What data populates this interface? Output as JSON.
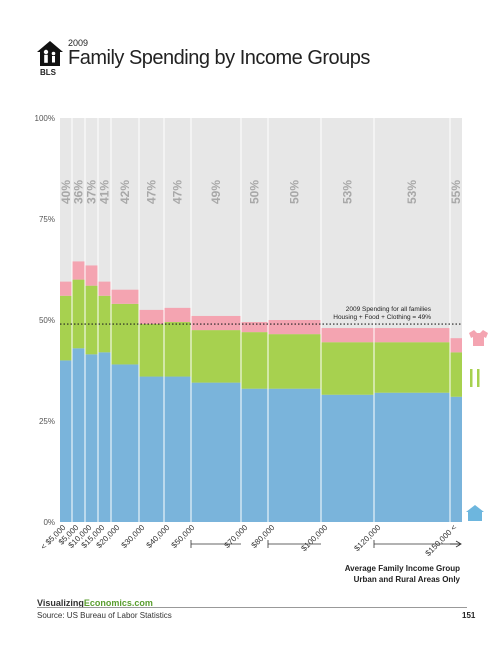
{
  "header": {
    "year": "2009",
    "title": "Family Spending by Income Groups",
    "logo_text": "BLS"
  },
  "footer": {
    "site_prefix": "Visualizing",
    "site_suffix": "Economics.com",
    "source": "Source: US Bureau of Labor Statistics",
    "page": "151"
  },
  "colors": {
    "housing": "#7ab4db",
    "food": "#a7d14f",
    "clothing": "#f4a4b1",
    "background": "#e7e7e7",
    "percent_label": "#a8a8a8",
    "icon": "#6db6de"
  },
  "icons": {
    "clothing": "shirt-icon",
    "food": "fork-knife-icon",
    "housing": "house-icon",
    "logo": "family-house-icon"
  },
  "chart_data": {
    "type": "bar",
    "title": "Family Spending by Income Groups",
    "ylim": [
      0,
      100
    ],
    "y_ticks": [
      "0%",
      "25%",
      "50%",
      "75%",
      "100%"
    ],
    "x_tick_labels": [
      "< $5,000",
      "$5,000",
      "$10,000",
      "$15,000",
      "$20,000",
      "$30,000",
      "$40,000",
      "$50,000",
      "$70,000",
      "$80,000",
      "$100,000",
      "$120,000",
      "$150,000 <"
    ],
    "x_caption_line1": "Average Family Income Group",
    "x_caption_line2": "Urban and Rural Areas Only",
    "reference_line": {
      "value": 49,
      "label_line1": "2009 Spending for all families",
      "label_line2": "Housing + Food + Clothing = 49%"
    },
    "groups": [
      {
        "start": 0,
        "end": 5000,
        "total_label": "40%",
        "housing": 40,
        "food": 16,
        "clothing": 3.5
      },
      {
        "start": 5000,
        "end": 10000,
        "total_label": "36%",
        "housing": 43,
        "food": 17,
        "clothing": 4.5
      },
      {
        "start": 10000,
        "end": 15000,
        "total_label": "37%",
        "housing": 41.5,
        "food": 17,
        "clothing": 5
      },
      {
        "start": 15000,
        "end": 20000,
        "total_label": "41%",
        "housing": 42,
        "food": 14,
        "clothing": 3.5
      },
      {
        "start": 20000,
        "end": 30000,
        "total_label": "42%",
        "housing": 39,
        "food": 15,
        "clothing": 3.5
      },
      {
        "start": 30000,
        "end": 40000,
        "total_label": "47%",
        "housing": 36,
        "food": 13,
        "clothing": 3.5
      },
      {
        "start": 40000,
        "end": 50000,
        "total_label": "47%",
        "housing": 36,
        "food": 13.5,
        "clothing": 3.5
      },
      {
        "start": 50000,
        "end": 70000,
        "total_label": "49%",
        "housing": 34.5,
        "food": 13,
        "clothing": 3.5
      },
      {
        "start": 70000,
        "end": 80000,
        "total_label": "50%",
        "housing": 33,
        "food": 14,
        "clothing": 2.5
      },
      {
        "start": 80000,
        "end": 100000,
        "total_label": "50%",
        "housing": 33,
        "food": 13.5,
        "clothing": 3.5
      },
      {
        "start": 100000,
        "end": 120000,
        "total_label": "53%",
        "housing": 31.5,
        "food": 13,
        "clothing": 3.5
      },
      {
        "start": 120000,
        "end": 150000,
        "total_label": "53%",
        "housing": 32,
        "food": 12.5,
        "clothing": 3.5
      },
      {
        "start": 150000,
        "end": 155000,
        "total_label": "55%",
        "housing": 31,
        "food": 11,
        "clothing": 3.5
      }
    ]
  }
}
